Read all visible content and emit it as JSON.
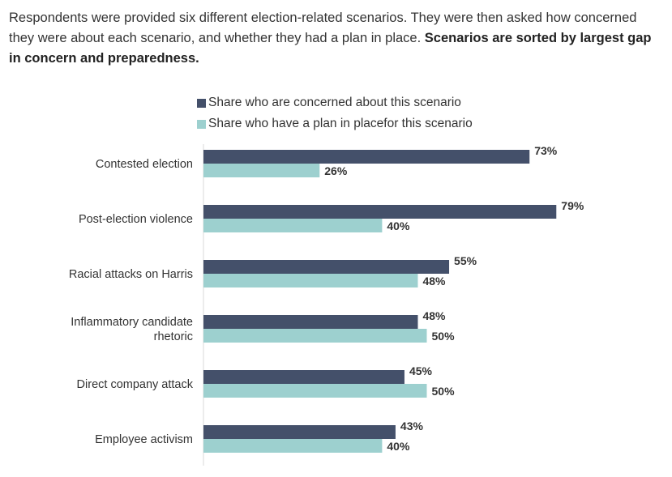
{
  "intro": {
    "text": "Respondents were provided six different election-related scenarios. They were then asked how concerned they were about each scenario, and whether they had a plan in place.",
    "bold_text": "Scenarios are sorted by largest gap in concern and preparedness."
  },
  "chart_data": {
    "type": "bar",
    "orientation": "horizontal",
    "categories": [
      [
        "Contested election"
      ],
      [
        "Post-election violence"
      ],
      [
        "Racial attacks on Harris"
      ],
      [
        "Inflammatory candidate",
        "rhetoric"
      ],
      [
        "Direct company attack"
      ],
      [
        "Employee activism"
      ]
    ],
    "series": [
      {
        "name": "Share who are concerned about this scenario",
        "color": "#44506a",
        "values": [
          73,
          79,
          55,
          48,
          45,
          43
        ]
      },
      {
        "name": "Share who have a plan in placefor this scenario",
        "color": "#9dd0cf",
        "values": [
          26,
          40,
          48,
          50,
          50,
          40
        ]
      }
    ],
    "value_suffix": "%",
    "legend_position": "top",
    "grid": false,
    "xlim": [
      0,
      100
    ]
  }
}
